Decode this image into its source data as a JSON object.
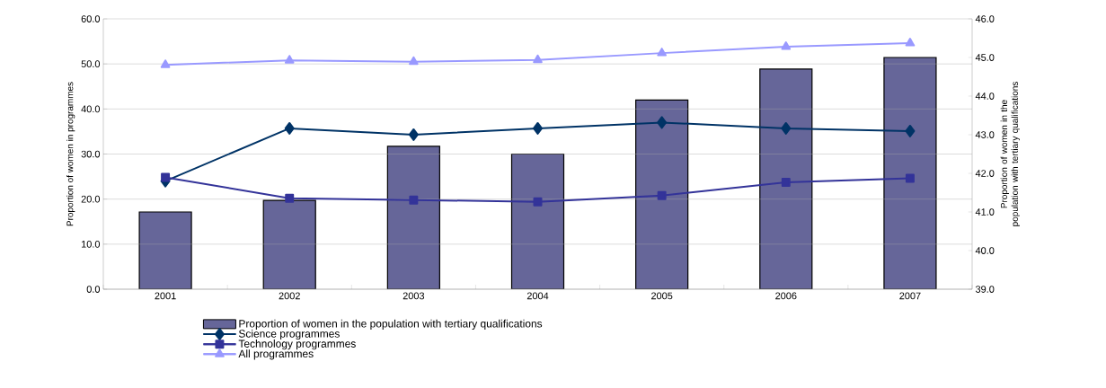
{
  "chart_data": {
    "type": "bar",
    "ylabel": "Proportion of women in programmes",
    "y2label": "Proportion of women in the population with tertiary qualifications",
    "categories": [
      "2001",
      "2002",
      "2003",
      "2004",
      "2005",
      "2006",
      "2007"
    ],
    "series": [
      {
        "name": "Proportion of women in the population with tertiary qualifications",
        "axis": "y2",
        "color": "#666699",
        "values": [
          41.0,
          41.3,
          42.7,
          42.5,
          43.9,
          44.7,
          45.0
        ]
      },
      {
        "name": "Science programmes",
        "type": "line",
        "marker": "diamond",
        "color": "#003366",
        "values": [
          24.0,
          35.7,
          34.3,
          35.7,
          37.0,
          35.7,
          35.1
        ]
      },
      {
        "name": "Technology programmes",
        "type": "line",
        "marker": "square",
        "color": "#333399",
        "values": [
          24.8,
          20.2,
          19.8,
          19.4,
          20.8,
          23.7,
          24.6
        ]
      },
      {
        "name": "All programmes",
        "type": "line",
        "marker": "triangle",
        "color": "#9999ff",
        "values": [
          49.8,
          50.8,
          50.5,
          50.9,
          52.4,
          53.8,
          54.6
        ]
      }
    ],
    "ylim": [
      0,
      60
    ],
    "yticks": [
      {
        "value": 0,
        "label": "0.0"
      },
      {
        "value": 10,
        "label": "10.0"
      },
      {
        "value": 20,
        "label": "20.0"
      },
      {
        "value": 30,
        "label": "30.0"
      },
      {
        "value": 40,
        "label": "40.0"
      },
      {
        "value": 50,
        "label": "50.0"
      },
      {
        "value": 60,
        "label": "60.0"
      }
    ],
    "y2lim": [
      39,
      46
    ],
    "y2ticks": [
      {
        "value": 39,
        "label": "39.0"
      },
      {
        "value": 40,
        "label": "40.0"
      },
      {
        "value": 41,
        "label": "41.0"
      },
      {
        "value": 42,
        "label": "42.0"
      },
      {
        "value": 43,
        "label": "43.0"
      },
      {
        "value": 44,
        "label": "44.0"
      },
      {
        "value": 45,
        "label": "45.0"
      },
      {
        "value": 46,
        "label": "46.0"
      }
    ],
    "grid": "y",
    "legend": "bottom"
  }
}
